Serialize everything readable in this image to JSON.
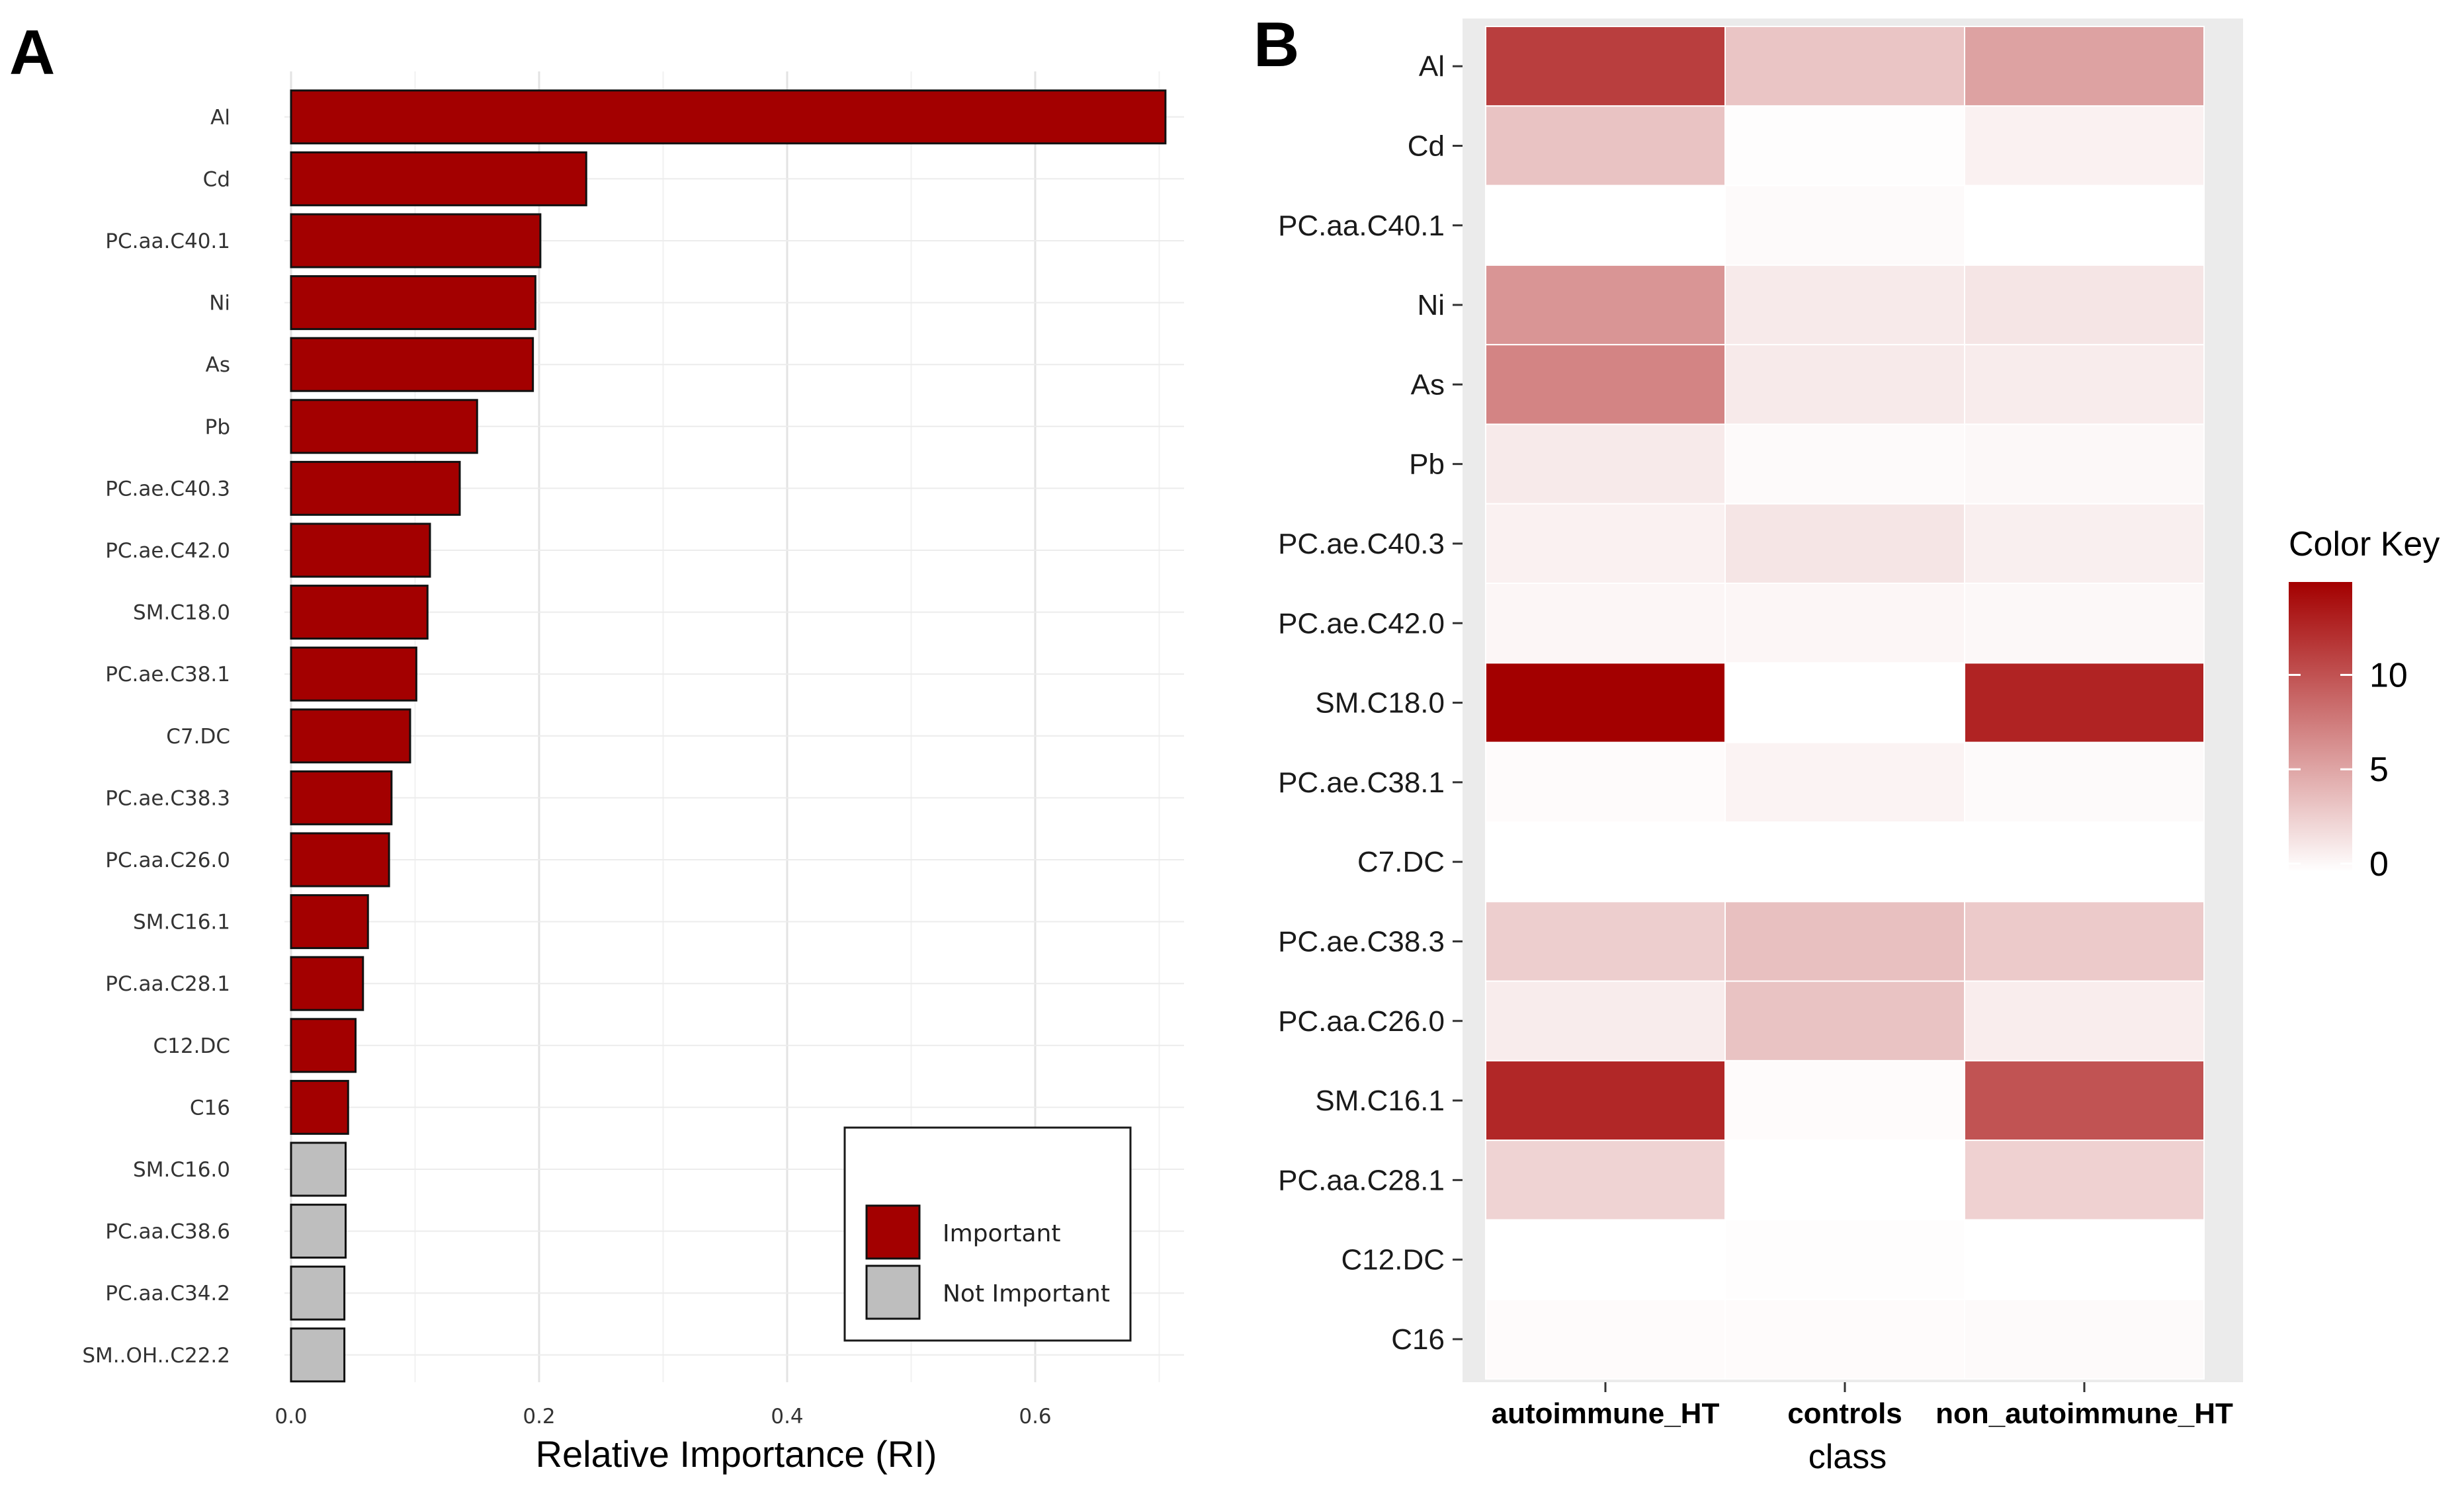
{
  "chart_data": [
    {
      "panel": "A",
      "type": "bar",
      "orientation": "horizontal",
      "title": "",
      "xlabel": "Relative Importance (RI)",
      "ylabel": "",
      "xlim": [
        0,
        0.72
      ],
      "x_ticks": [
        0.0,
        0.2,
        0.4,
        0.6
      ],
      "x_tick_labels": [
        "0.0",
        "0.2",
        "0.4",
        "0.6"
      ],
      "grid": true,
      "categories": [
        "Al",
        "Cd",
        "PC.aa.C40.1",
        "Ni",
        "As",
        "Pb",
        "PC.ae.C40.3",
        "PC.ae.C42.0",
        "SM.C18.0",
        "PC.ae.C38.1",
        "C7.DC",
        "PC.ae.C38.3",
        "PC.aa.C26.0",
        "SM.C16.1",
        "PC.aa.C28.1",
        "C12.DC",
        "C16",
        "SM.C16.0",
        "PC.aa.C38.6",
        "PC.aa.C34.2",
        "SM..OH..C22.2"
      ],
      "values": [
        0.705,
        0.238,
        0.201,
        0.197,
        0.195,
        0.15,
        0.136,
        0.112,
        0.11,
        0.101,
        0.096,
        0.081,
        0.079,
        0.062,
        0.058,
        0.052,
        0.046,
        0.044,
        0.044,
        0.043,
        0.043
      ],
      "status": [
        "Important",
        "Important",
        "Important",
        "Important",
        "Important",
        "Important",
        "Important",
        "Important",
        "Important",
        "Important",
        "Important",
        "Important",
        "Important",
        "Important",
        "Important",
        "Important",
        "Important",
        "Not Important",
        "Not Important",
        "Not Important",
        "Not Important"
      ],
      "legend": {
        "placement": "bottom-right",
        "entries": [
          {
            "label": "Important",
            "color": "#a30000"
          },
          {
            "label": "Not Important",
            "color": "#bebebe"
          }
        ]
      }
    },
    {
      "panel": "B",
      "type": "heatmap",
      "title": "",
      "xlabel": "class",
      "ylabel": "",
      "x_categories": [
        "autoimmune_HT",
        "controls",
        "non_autoimmune_HT"
      ],
      "y_categories": [
        "Al",
        "Cd",
        "PC.aa.C40.1",
        "Ni",
        "As",
        "Pb",
        "PC.ae.C40.3",
        "PC.ae.C42.0",
        "SM.C18.0",
        "PC.ae.C38.1",
        "C7.DC",
        "PC.ae.C38.3",
        "PC.aa.C26.0",
        "SM.C16.1",
        "PC.aa.C28.1",
        "C12.DC",
        "C16"
      ],
      "values": [
        [
          11.0,
          3.3,
          5.3
        ],
        [
          3.4,
          0.1,
          0.8
        ],
        [
          0.0,
          0.3,
          0.0
        ],
        [
          6.0,
          1.2,
          1.5
        ],
        [
          7.0,
          1.2,
          1.1
        ],
        [
          1.2,
          0.3,
          0.4
        ],
        [
          0.8,
          1.5,
          0.9
        ],
        [
          0.5,
          0.5,
          0.4
        ],
        [
          14.5,
          0.0,
          12.5
        ],
        [
          0.2,
          0.7,
          0.3
        ],
        [
          0.0,
          0.0,
          0.0
        ],
        [
          2.8,
          3.6,
          3.0
        ],
        [
          1.1,
          3.4,
          1.0
        ],
        [
          12.3,
          0.2,
          9.8
        ],
        [
          2.5,
          0.0,
          2.6
        ],
        [
          0.0,
          0.1,
          0.0
        ],
        [
          0.2,
          0.2,
          0.3
        ]
      ],
      "color_key": {
        "title": "Color Key",
        "min": 0,
        "max": 14.5,
        "ticks": [
          0,
          5,
          10
        ],
        "tick_labels": [
          "0",
          "5",
          "10"
        ],
        "low_color": "#ffffff",
        "high_color": "#a30000"
      }
    }
  ],
  "panel_labels": {
    "a": "A",
    "b": "B"
  }
}
